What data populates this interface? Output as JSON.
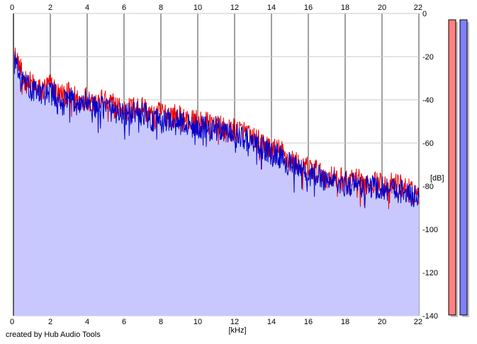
{
  "chart_data": {
    "type": "line",
    "xlabel": "[kHz]",
    "ylabel": "[dB]",
    "xlim": [
      0,
      22
    ],
    "ylim": [
      -140,
      0
    ],
    "x_ticks": [
      "0",
      "2",
      "4",
      "6",
      "8",
      "10",
      "12",
      "14",
      "16",
      "18",
      "20",
      "22"
    ],
    "y_ticks": [
      "0",
      "-20",
      "-40",
      "-60",
      "-80",
      "-100",
      "-120",
      "-140"
    ],
    "grid": true,
    "fill_color": "#c8c8ff",
    "series": [
      {
        "color": "#ee0000",
        "x": [
          0,
          0.25,
          0.5,
          1,
          1.5,
          2,
          2.5,
          3,
          3.5,
          4,
          4.5,
          5,
          5.5,
          6,
          6.5,
          7,
          7.5,
          8,
          8.5,
          9,
          9.5,
          10,
          10.5,
          11,
          11.5,
          12,
          12.5,
          13,
          13.5,
          14,
          14.5,
          15,
          15.5,
          16,
          16.5,
          17,
          17.5,
          18,
          18.5,
          19,
          19.5,
          20,
          20.5,
          21,
          21.5,
          22
        ],
        "y": [
          -20,
          -22,
          -30,
          -33,
          -36,
          -33,
          -38,
          -37,
          -40,
          -39,
          -41,
          -40,
          -43,
          -45,
          -44,
          -43,
          -48,
          -46,
          -47,
          -48,
          -50,
          -50,
          -51,
          -50,
          -53,
          -54,
          -55,
          -58,
          -60,
          -63,
          -64,
          -68,
          -70,
          -72,
          -73,
          -75,
          -76,
          -77,
          -77,
          -78,
          -78,
          -79,
          -79,
          -80,
          -82,
          -83
        ]
      },
      {
        "color": "#0000cc",
        "x": [
          0,
          0.25,
          0.5,
          1,
          1.5,
          2,
          2.5,
          3,
          3.5,
          4,
          4.5,
          5,
          5.5,
          6,
          6.5,
          7,
          7.5,
          8,
          8.5,
          9,
          9.5,
          10,
          10.5,
          11,
          11.5,
          12,
          12.5,
          13,
          13.5,
          14,
          14.5,
          15,
          15.5,
          16,
          16.5,
          17,
          17.5,
          18,
          18.5,
          19,
          19.5,
          20,
          20.5,
          21,
          21.5,
          22
        ],
        "y": [
          -22,
          -24,
          -32,
          -35,
          -38,
          -35,
          -40,
          -39,
          -42,
          -41,
          -43,
          -43,
          -45,
          -47,
          -46,
          -45,
          -50,
          -48,
          -49,
          -50,
          -52,
          -52,
          -53,
          -53,
          -55,
          -56,
          -57,
          -60,
          -62,
          -65,
          -66,
          -70,
          -72,
          -74,
          -75,
          -77,
          -78,
          -79,
          -79,
          -80,
          -80,
          -81,
          -81,
          -82,
          -84,
          -85
        ]
      }
    ],
    "level_meters": [
      {
        "color": "#ff8080",
        "level": 1.0
      },
      {
        "color": "#8080ff",
        "level": 1.0
      }
    ]
  },
  "footer": {
    "credit": "created by Hub Audio Tools"
  }
}
